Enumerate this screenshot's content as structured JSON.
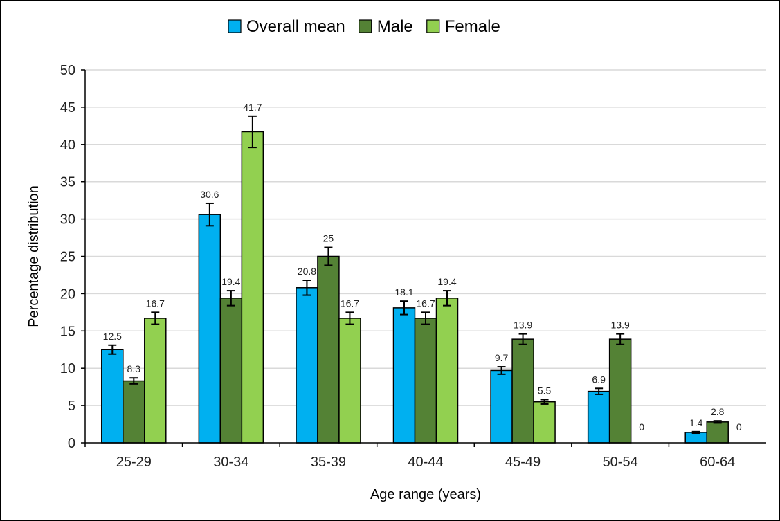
{
  "chart_data": {
    "type": "bar",
    "categories": [
      "25-29",
      "30-34",
      "35-39",
      "40-44",
      "45-49",
      "50-54",
      "60-64"
    ],
    "series": [
      {
        "name": "Overall mean",
        "values": [
          12.5,
          30.6,
          20.8,
          18.1,
          9.7,
          6.9,
          1.4
        ],
        "errors": [
          0.6,
          1.5,
          1.0,
          0.9,
          0.5,
          0.4,
          0.1
        ],
        "color": "#00B0F0"
      },
      {
        "name": "Male",
        "values": [
          8.3,
          19.4,
          25,
          16.7,
          13.9,
          13.9,
          2.8
        ],
        "errors": [
          0.4,
          1.0,
          1.2,
          0.8,
          0.7,
          0.7,
          0.15
        ],
        "color": "#548235"
      },
      {
        "name": "Female",
        "values": [
          16.7,
          41.7,
          16.7,
          19.4,
          5.5,
          0,
          0
        ],
        "errors": [
          0.8,
          2.1,
          0.8,
          1.0,
          0.3,
          0,
          0
        ],
        "color": "#92D050"
      }
    ],
    "xlabel": "Age range (years)",
    "ylabel": "Percentage distribution",
    "ylim": [
      0,
      50
    ],
    "yticks": [
      0,
      5,
      10,
      15,
      20,
      25,
      30,
      35,
      40,
      45,
      50
    ],
    "grid": true,
    "legend_position": "top"
  }
}
